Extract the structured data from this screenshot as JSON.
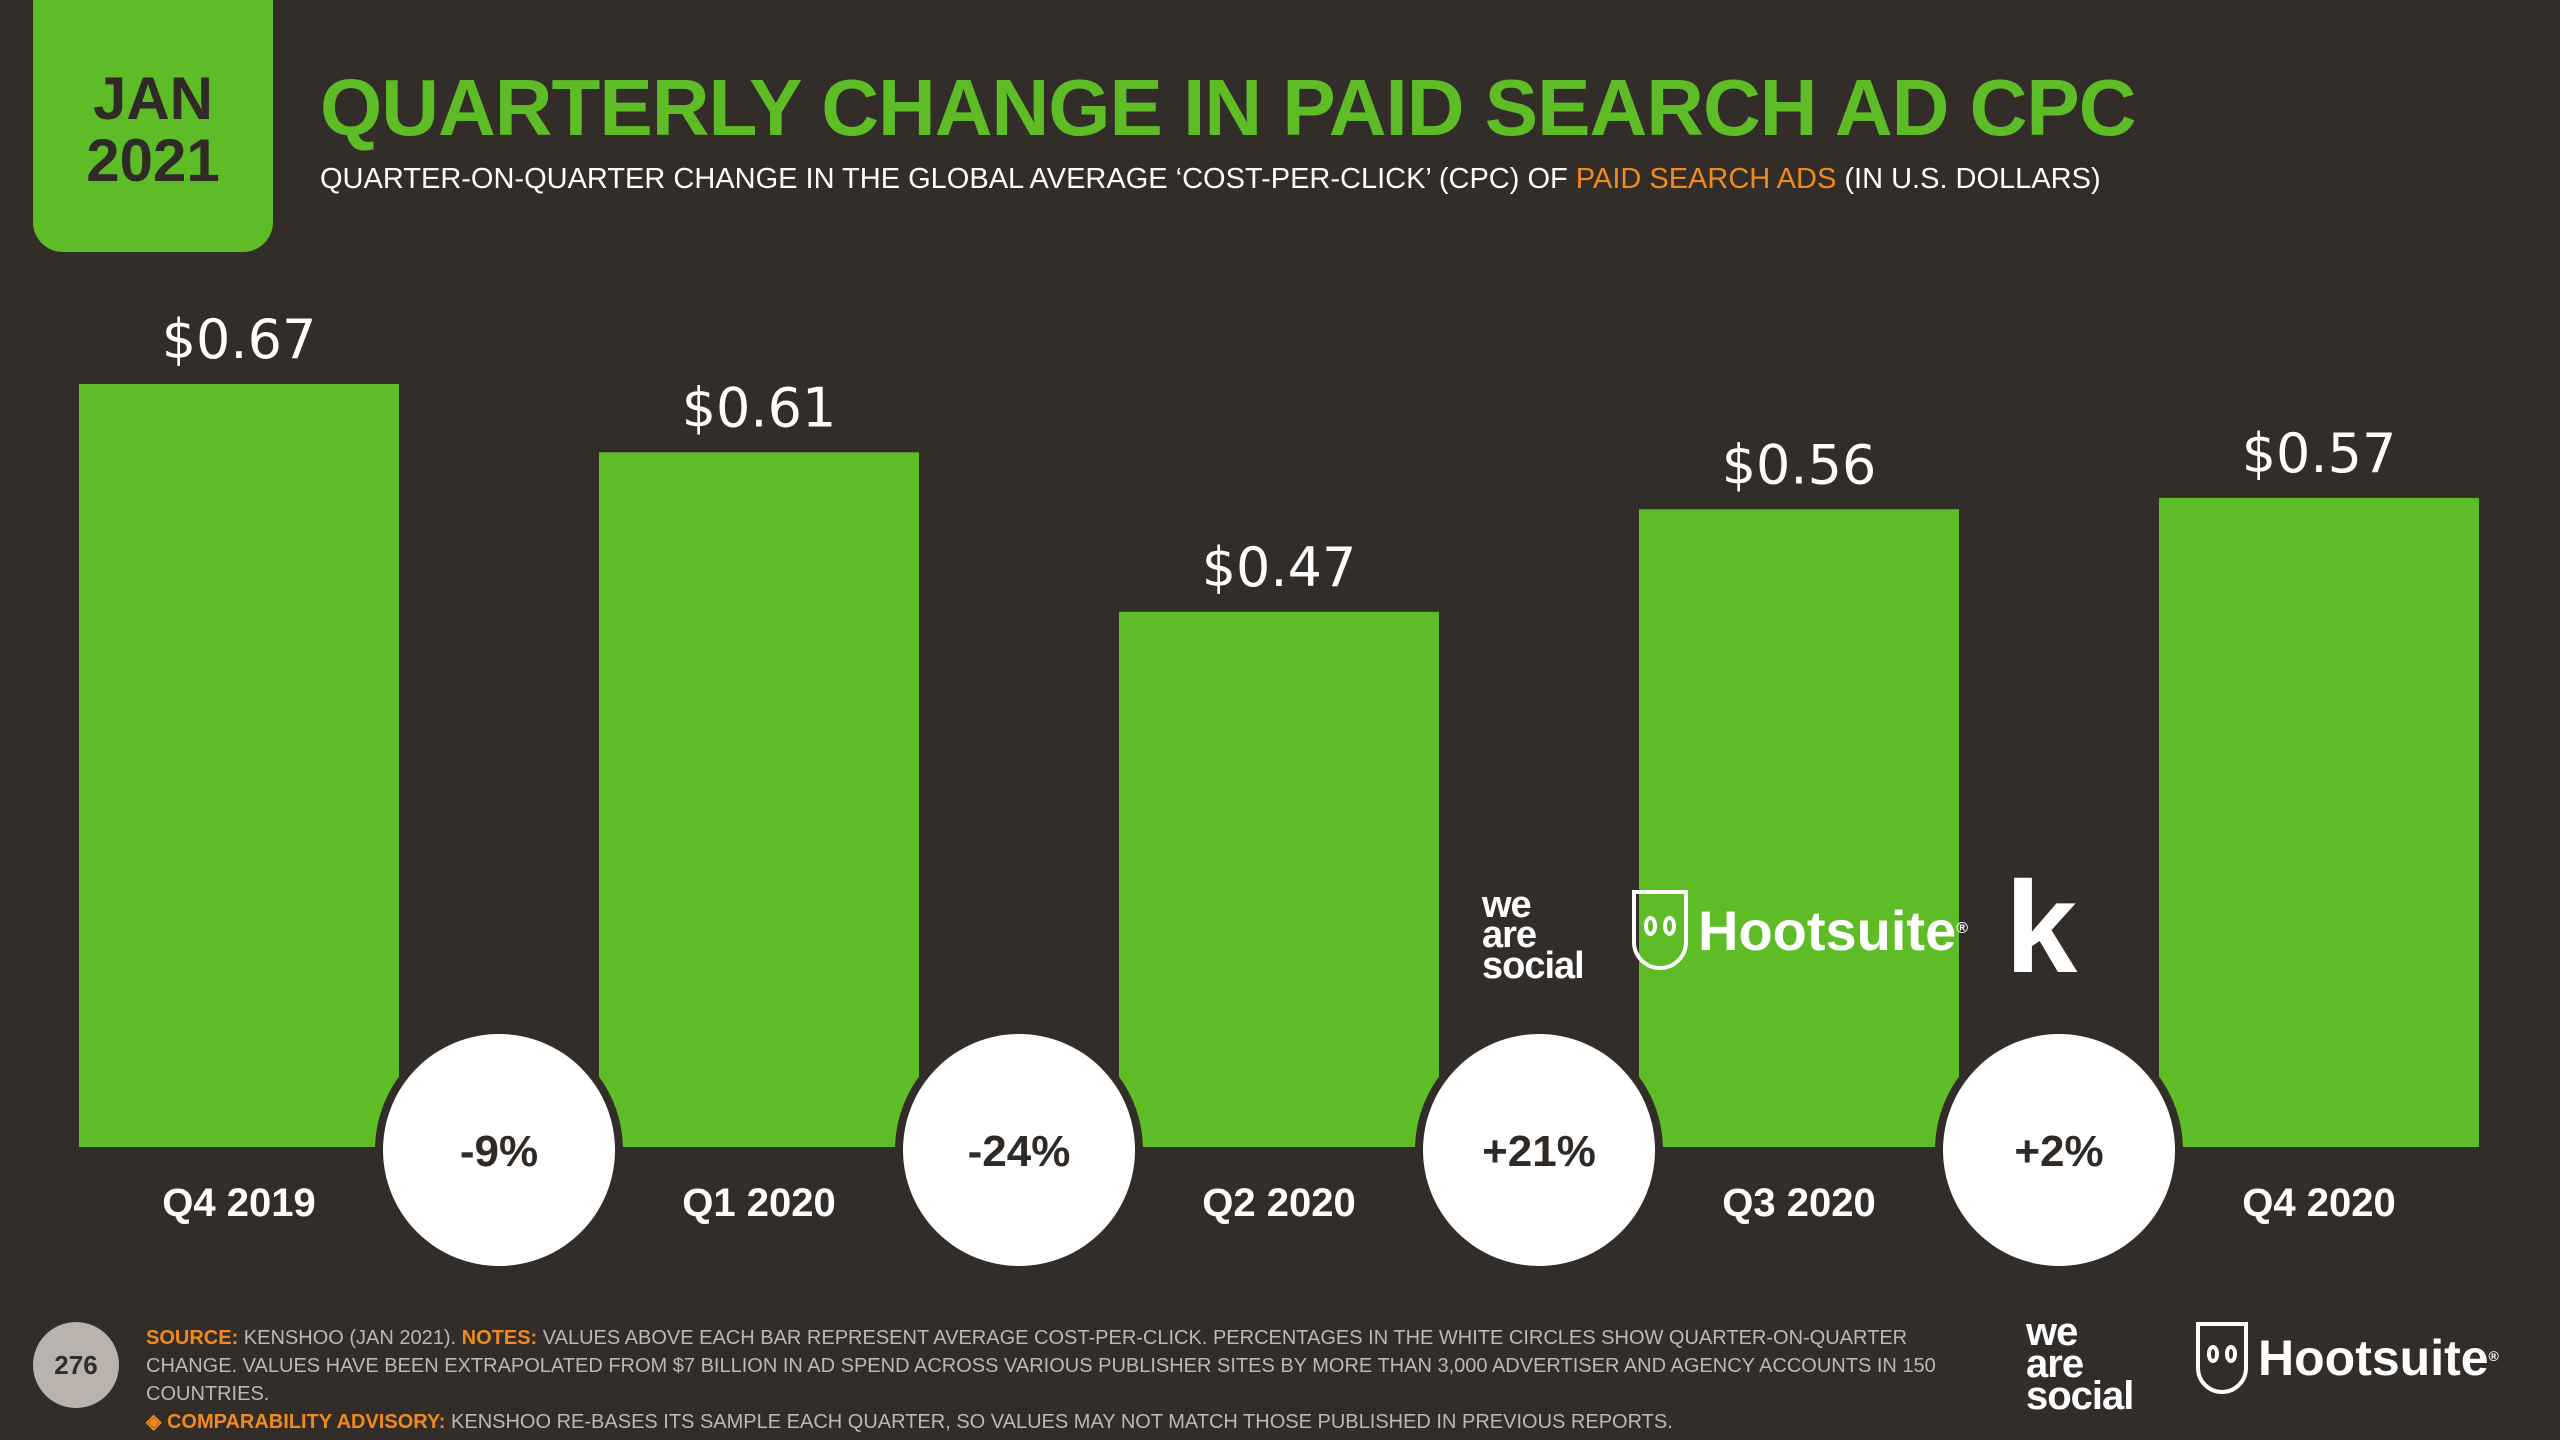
{
  "badge": {
    "month": "JAN",
    "year": "2021"
  },
  "header": {
    "title": "QUARTERLY CHANGE IN PAID SEARCH AD CPC",
    "subtitle_pre": "QUARTER-ON-QUARTER CHANGE IN THE GLOBAL AVERAGE ‘COST-PER-CLICK’ (CPC) OF ",
    "subtitle_highlight": "PAID SEARCH ADS",
    "subtitle_post": " (IN U.S. DOLLARS)"
  },
  "chart_data": {
    "type": "bar",
    "categories": [
      "Q4 2019",
      "Q1 2020",
      "Q2 2020",
      "Q3 2020",
      "Q4 2020"
    ],
    "values": [
      0.67,
      0.61,
      0.47,
      0.56,
      0.57
    ],
    "value_labels": [
      "$0.67",
      "$0.61",
      "$0.47",
      "$0.56",
      "$0.57"
    ],
    "changes": [
      "-9%",
      "-24%",
      "+21%",
      "+2%"
    ],
    "title": "QUARTERLY CHANGE IN PAID SEARCH AD CPC",
    "xlabel": "",
    "ylabel": "",
    "ylim": [
      0,
      0.67
    ],
    "grid": false,
    "colors": {
      "bar": "#5ebd26",
      "circle": "#ffffff"
    }
  },
  "footer": {
    "page_number": "276",
    "source_label": "SOURCE:",
    "source_text": " KENSHOO (JAN 2021). ",
    "notes_label": "NOTES:",
    "notes_text": " VALUES ABOVE EACH BAR REPRESENT AVERAGE COST-PER-CLICK. PERCENTAGES IN THE WHITE CIRCLES SHOW QUARTER-ON-QUARTER CHANGE. VALUES HAVE BEEN EXTRAPOLATED FROM $7 BILLION IN AD SPEND ACROSS VARIOUS PUBLISHER SITES BY MORE THAN 3,000 ADVERTISER AND AGENCY ACCOUNTS IN 150 COUNTRIES.",
    "advisory_label": "◈ COMPARABILITY ADVISORY:",
    "advisory_text": " KENSHOO RE-BASES ITS SAMPLE EACH QUARTER, SO VALUES MAY NOT MATCH THOSE PUBLISHED IN PREVIOUS REPORTS."
  },
  "logos": {
    "was_line1": "we",
    "was_line2": "are",
    "was_line3": "social",
    "hootsuite": "Hootsuite",
    "reg": "®",
    "kenshoo": "k"
  },
  "colors": {
    "background": "#332d29",
    "accent": "#5ebd26",
    "highlight": "#f08a1e"
  }
}
